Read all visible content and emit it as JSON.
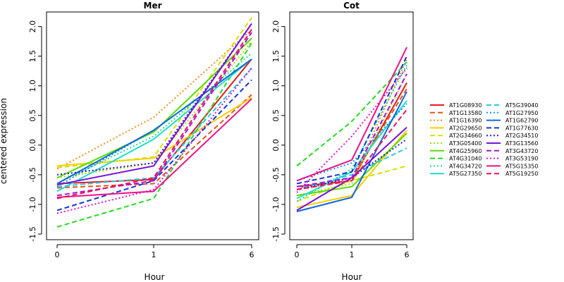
{
  "chart_data": {
    "type": "line",
    "ylabel": "centered expression",
    "xlabel": "Hour",
    "x": [
      "0",
      "1",
      "6"
    ],
    "ylim": [
      -1.5,
      2.2
    ],
    "yticks": [
      "-1.5",
      "-1.0",
      "-0.5",
      "0.0",
      "0.5",
      "1.0",
      "1.5",
      "2.0"
    ],
    "legend_position": "right",
    "series": [
      {
        "name": "AT1G08930",
        "color": "#e41a1c",
        "dash": "solid"
      },
      {
        "name": "AT1G13580",
        "color": "#e0561a",
        "dash": "dash"
      },
      {
        "name": "AT1G16390",
        "color": "#f08c1e",
        "dash": "dot"
      },
      {
        "name": "AT2G29650",
        "color": "#ffcc00",
        "dash": "solid"
      },
      {
        "name": "AT2G34660",
        "color": "#d4e000",
        "dash": "dash"
      },
      {
        "name": "AT3G05400",
        "color": "#99e000",
        "dash": "dot"
      },
      {
        "name": "AT4G25960",
        "color": "#55dd00",
        "dash": "solid"
      },
      {
        "name": "AT4G31040",
        "color": "#22dd22",
        "dash": "dash"
      },
      {
        "name": "AT4G34720",
        "color": "#22dd88",
        "dash": "dot"
      },
      {
        "name": "AT5G27350",
        "color": "#22ddcc",
        "dash": "solid"
      },
      {
        "name": "AT5G39040",
        "color": "#22ccee",
        "dash": "dash"
      },
      {
        "name": "AT1G27950",
        "color": "#1199ee",
        "dash": "dot"
      },
      {
        "name": "AT1G62790",
        "color": "#1166dd",
        "dash": "solid"
      },
      {
        "name": "AT1G77630",
        "color": "#1133dd",
        "dash": "dash"
      },
      {
        "name": "AT2G34510",
        "color": "#3311cc",
        "dash": "dot"
      },
      {
        "name": "AT3G13560",
        "color": "#7711dd",
        "dash": "solid"
      },
      {
        "name": "AT3G43720",
        "color": "#aa11dd",
        "dash": "dash"
      },
      {
        "name": "AT3G53190",
        "color": "#dd11cc",
        "dash": "dot"
      },
      {
        "name": "AT5G15350",
        "color": "#ee1188",
        "dash": "solid"
      },
      {
        "name": "AT5G19250",
        "color": "#ee1155",
        "dash": "dash"
      }
    ],
    "panels": [
      {
        "title": "Mer",
        "values": [
          [
            -0.65,
            -0.58,
            1.45
          ],
          [
            -0.72,
            -0.65,
            0.85
          ],
          [
            -0.4,
            0.47,
            1.95
          ],
          [
            -0.35,
            -0.22,
            0.8
          ],
          [
            -0.38,
            -0.2,
            2.15
          ],
          [
            -0.55,
            -0.3,
            1.75
          ],
          [
            -0.55,
            0.22,
            1.8
          ],
          [
            -1.38,
            -0.9,
            1.72
          ],
          [
            -0.65,
            0.15,
            1.55
          ],
          [
            -0.78,
            0.1,
            1.45
          ],
          [
            -0.7,
            -0.55,
            1.3
          ],
          [
            -0.7,
            0.25,
            1.45
          ],
          [
            -0.65,
            0.25,
            1.45
          ],
          [
            -1.1,
            -0.6,
            1.1
          ],
          [
            -0.5,
            -0.3,
            2.05
          ],
          [
            -0.67,
            -0.35,
            2.05
          ],
          [
            -0.85,
            -0.6,
            1.9
          ],
          [
            -1.15,
            -0.75,
            1.3
          ],
          [
            -0.88,
            -0.78,
            0.78
          ],
          [
            -0.9,
            -0.55,
            1.95
          ]
        ]
      },
      {
        "title": "Cot",
        "values": [
          [
            -0.7,
            -0.6,
            1.05
          ],
          [
            -0.7,
            -0.55,
            0.95
          ],
          [
            -0.75,
            -0.6,
            1.45
          ],
          [
            -1.05,
            -0.85,
            0.25
          ],
          [
            -0.95,
            -0.6,
            -0.35
          ],
          [
            -0.85,
            -0.65,
            1.2
          ],
          [
            -0.85,
            -0.7,
            0.2
          ],
          [
            -0.35,
            0.4,
            1.4
          ],
          [
            -0.95,
            -0.4,
            1.35
          ],
          [
            -0.9,
            -0.45,
            0.75
          ],
          [
            -0.75,
            -0.5,
            -0.05
          ],
          [
            -0.6,
            -0.3,
            0.7
          ],
          [
            -1.12,
            -0.88,
            0.9
          ],
          [
            -0.65,
            -0.45,
            1.5
          ],
          [
            -0.75,
            -0.55,
            0.1
          ],
          [
            -1.1,
            -0.55,
            0.3
          ],
          [
            -0.7,
            -0.55,
            1.2
          ],
          [
            -0.8,
            0.15,
            1.3
          ],
          [
            -0.6,
            -0.25,
            1.65
          ],
          [
            -0.75,
            -0.6,
            0.6
          ]
        ]
      }
    ]
  }
}
